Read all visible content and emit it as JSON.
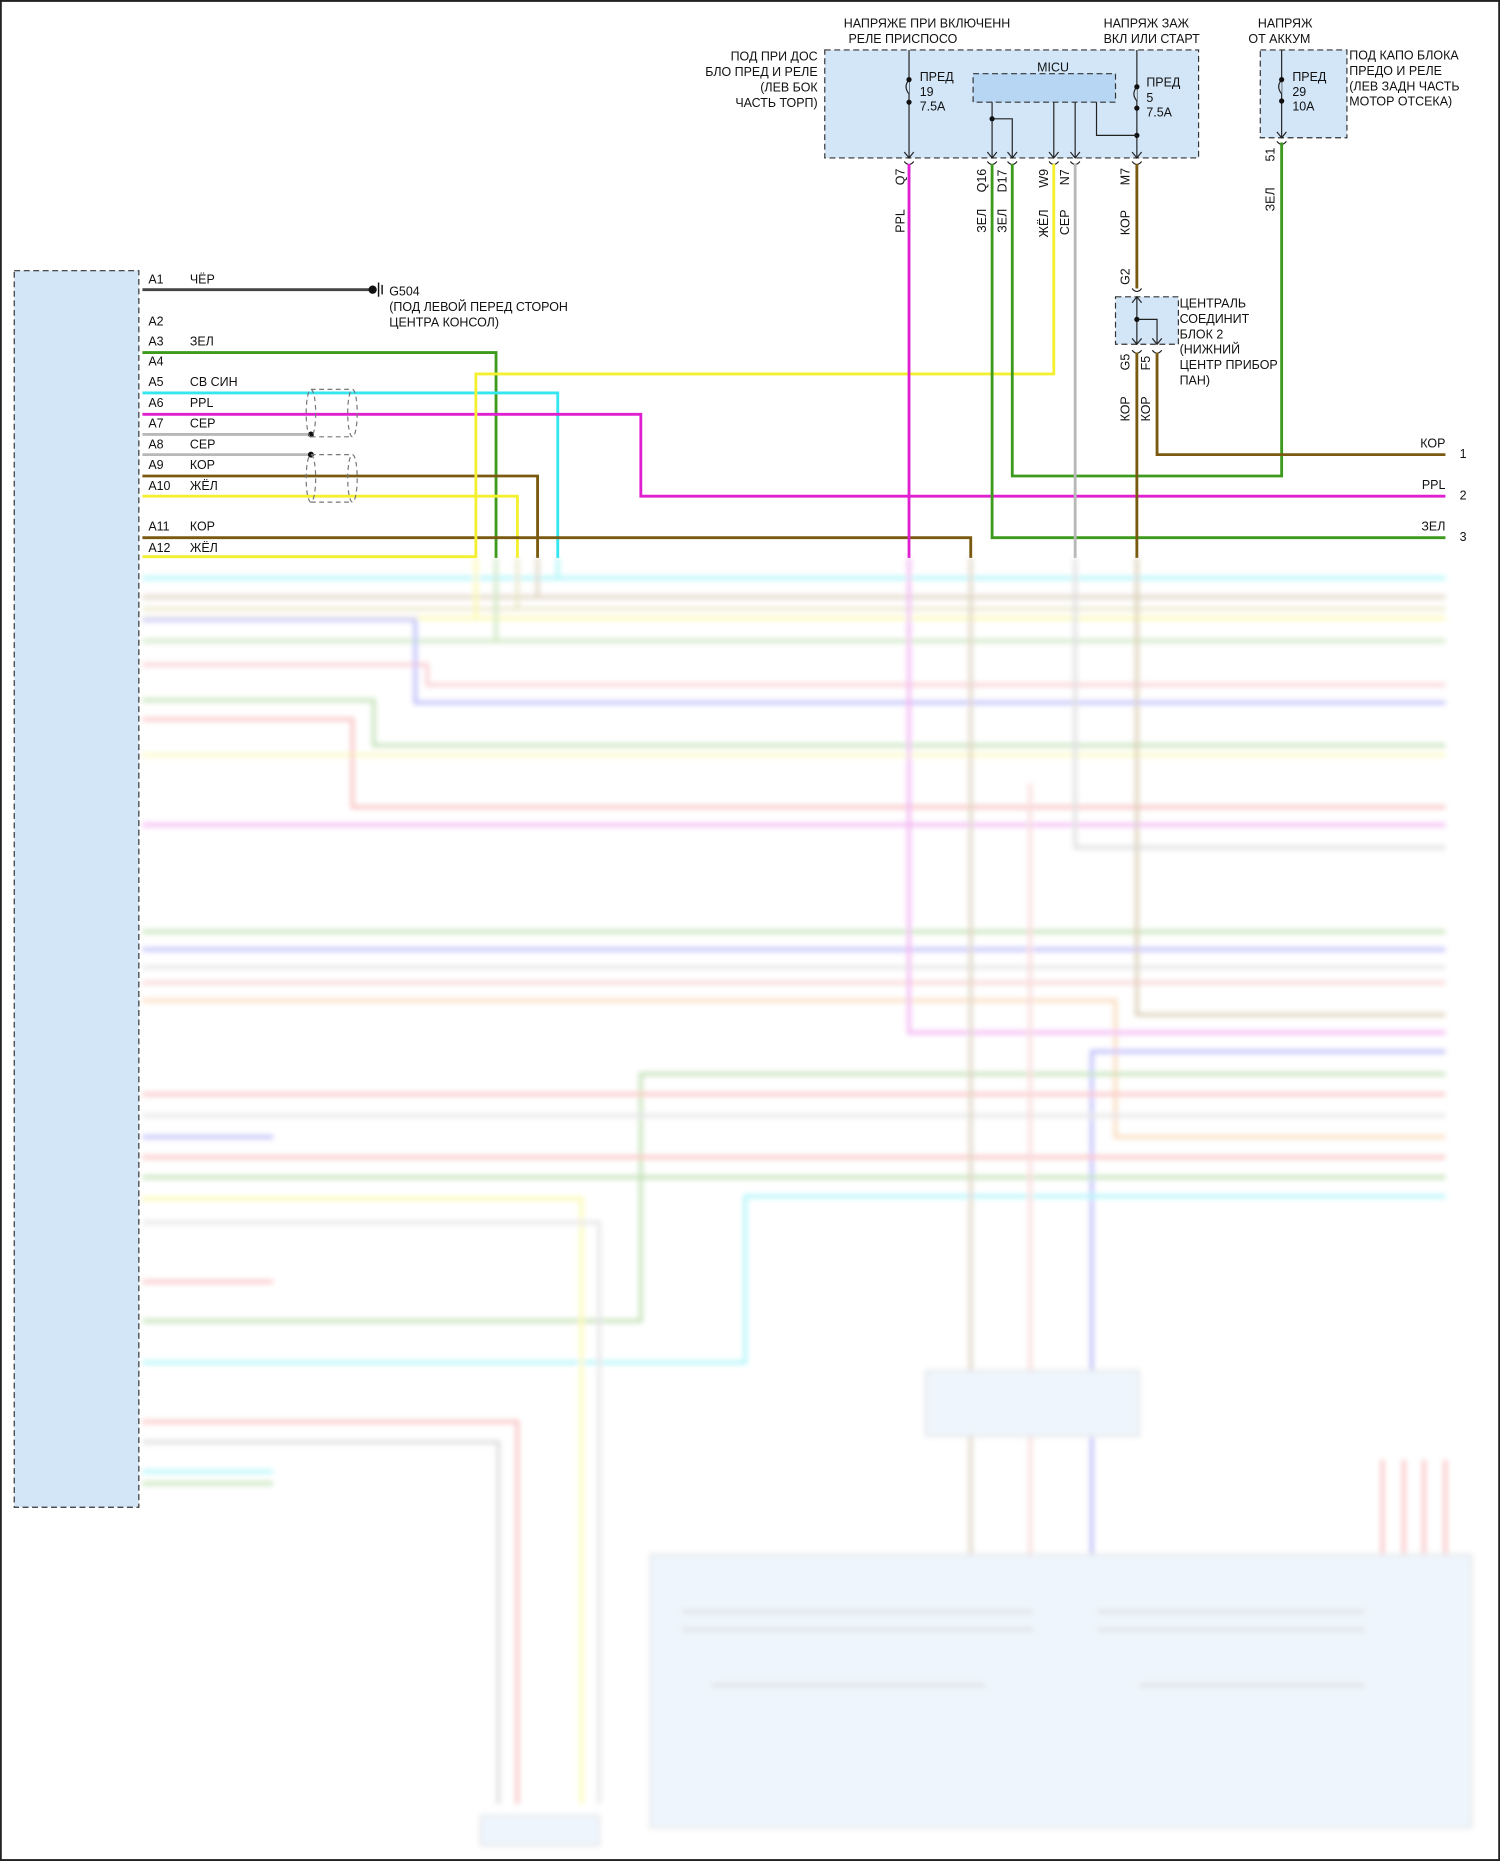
{
  "fuse_box_dash": {
    "supply_label": [
      "НАПРЯЖЕ ПРИ ВКЛЮЧЕНН",
      "РЕЛЕ ПРИСПОСО"
    ],
    "ignition_label": [
      "НАПРЯЖ ЗАЖ",
      "ВКЛ ИЛИ СТАРТ"
    ],
    "location": [
      "ПОД ПРИ ДОС",
      "БЛО ПРЕД И РЕЛЕ",
      "(ЛЕВ БОК",
      "ЧАСТЬ ТОРП)"
    ],
    "micu": "MICU",
    "fuse19": [
      "ПРЕД",
      "19",
      "7.5A"
    ],
    "fuse5": [
      "ПРЕД",
      "5",
      "7.5A"
    ],
    "terminals": [
      {
        "pin": "Q7",
        "color": "PPL"
      },
      {
        "pin": "Q16",
        "color": "ЗЕЛ"
      },
      {
        "pin": "D17",
        "color": "ЗЕЛ"
      },
      {
        "pin": "W9",
        "color": "ЖЁЛ"
      },
      {
        "pin": "N7",
        "color": "СЕР"
      },
      {
        "pin": "M7",
        "color": "КОР"
      }
    ]
  },
  "fuse_box_hood": {
    "supply_label": [
      "НАПРЯЖ",
      "ОТ АККУМ"
    ],
    "location": [
      "ПОД КАПО БЛОКА",
      "ПРЕДО И РЕЛЕ",
      "(ЛЕВ ЗАДН ЧАСТЬ",
      "МОТОР ОТСЕКА)"
    ],
    "fuse29": [
      "ПРЕД",
      "29",
      "10A"
    ],
    "terminal": {
      "pin": "51",
      "color": "ЗЕЛ"
    }
  },
  "junction_block": {
    "label": [
      "ЦЕНТРАЛЬ",
      "СОЕДИНИТ",
      "БЛОК 2",
      "(НИЖНИЙ",
      "ЦЕНТР ПРИБОР",
      "ПАН)"
    ],
    "in_pin": "G2",
    "out_pins": [
      {
        "pin": "G5",
        "color": "КОР"
      },
      {
        "pin": "F5",
        "color": "КОР"
      }
    ]
  },
  "ground": {
    "name": "G504",
    "location": [
      "(ПОД ЛЕВОЙ ПЕРЕД СТОРОН",
      "ЦЕНТРА КОНСОЛ)"
    ]
  },
  "connector_pins": [
    {
      "pin": "A1",
      "color": "ЧЁР"
    },
    {
      "pin": "A2",
      "color": ""
    },
    {
      "pin": "A3",
      "color": "ЗЕЛ"
    },
    {
      "pin": "A4",
      "color": ""
    },
    {
      "pin": "A5",
      "color": "СВ СИН"
    },
    {
      "pin": "A6",
      "color": "PPL"
    },
    {
      "pin": "A7",
      "color": "СЕР"
    },
    {
      "pin": "A8",
      "color": "СЕР"
    },
    {
      "pin": "A9",
      "color": "КОР"
    },
    {
      "pin": "A10",
      "color": "ЖЁЛ"
    },
    {
      "pin": "A11",
      "color": "КОР"
    },
    {
      "pin": "A12",
      "color": "ЖЁЛ"
    }
  ],
  "outputs": [
    {
      "color": "КОР",
      "num": "1"
    },
    {
      "color": "PPL",
      "num": "2"
    },
    {
      "color": "ЗЕЛ",
      "num": "3"
    }
  ],
  "wire_colors": {
    "black": "#333333",
    "green": "#3d9a1c",
    "light_blue": "#33e6f0",
    "purple": "#e020d0",
    "gray": "#b8b8b8",
    "brown": "#7a5a10",
    "yellow": "#f4f030"
  }
}
